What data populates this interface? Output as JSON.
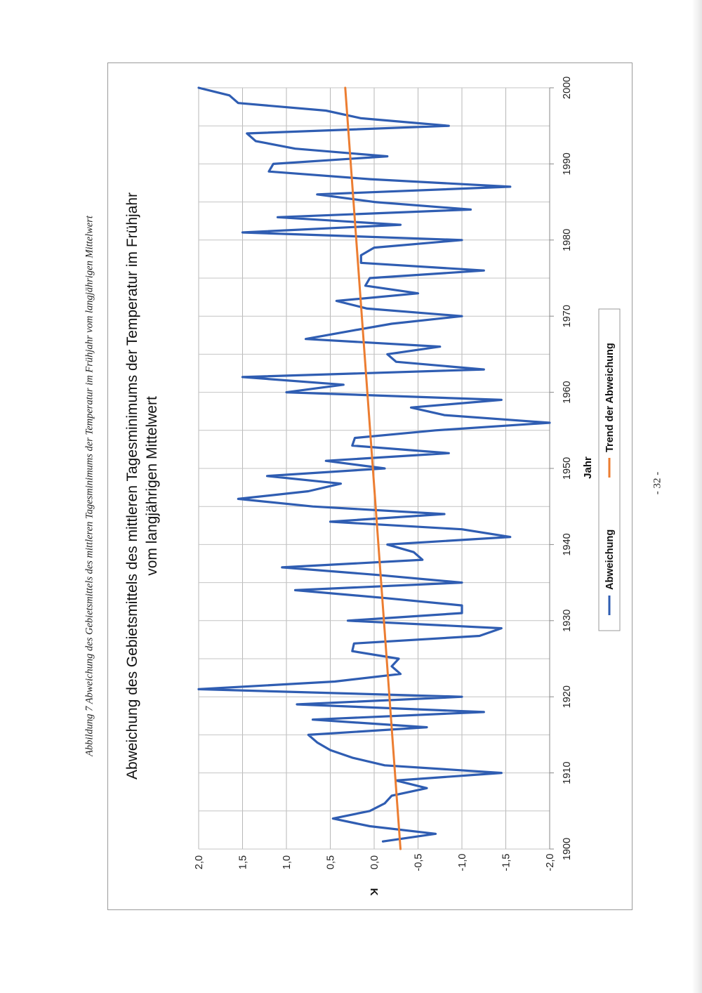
{
  "document": {
    "caption": "Abbildung 7 Abweichung des Gebietsmittels des mittleren Tagesminimums der Temperatur im Frühjahr vom langjährigen Mittelwert",
    "page_number": "- 32 -"
  },
  "chart_data": {
    "type": "line",
    "title": "Abweichung des Gebietsmittels des mittleren Tagesminimums der Temperatur im Frühjahr",
    "subtitle": "vom langjährigen Mittelwert",
    "xlabel": "Jahr",
    "ylabel": "K",
    "xlim": [
      1900,
      2000
    ],
    "ylim": [
      -2.0,
      2.0
    ],
    "x_ticks": [
      1900,
      1910,
      1920,
      1930,
      1940,
      1950,
      1960,
      1970,
      1980,
      1990,
      2000
    ],
    "y_ticks": [
      "2,0",
      "1,5",
      "1,0",
      "0,5",
      "0,0",
      "-0,5",
      "-1,0",
      "-1,5",
      "-2,0"
    ],
    "y_tick_values": [
      2.0,
      1.5,
      1.0,
      0.5,
      0.0,
      -0.5,
      -1.0,
      -1.5,
      -2.0
    ],
    "grid": true,
    "legend_position": "bottom",
    "series": [
      {
        "name": "Abweichung",
        "color": "#2f5db2",
        "x": [
          1901,
          1902,
          1903,
          1904,
          1905,
          1906,
          1907,
          1908,
          1909,
          1910,
          1911,
          1912,
          1913,
          1914,
          1915,
          1916,
          1917,
          1918,
          1919,
          1920,
          1921,
          1922,
          1923,
          1924,
          1925,
          1926,
          1927,
          1928,
          1929,
          1930,
          1931,
          1932,
          1933,
          1934,
          1935,
          1936,
          1937,
          1938,
          1939,
          1940,
          1941,
          1942,
          1943,
          1944,
          1945,
          1946,
          1947,
          1948,
          1949,
          1950,
          1951,
          1952,
          1953,
          1954,
          1955,
          1956,
          1957,
          1958,
          1959,
          1960,
          1961,
          1962,
          1963,
          1964,
          1965,
          1966,
          1967,
          1968,
          1969,
          1970,
          1971,
          1972,
          1973,
          1974,
          1975,
          1976,
          1977,
          1978,
          1979,
          1980,
          1981,
          1982,
          1983,
          1984,
          1985,
          1986,
          1987,
          1988,
          1989,
          1990,
          1991,
          1992,
          1993,
          1994,
          1995,
          1996,
          1997,
          1998,
          1999,
          2000
        ],
        "values": [
          -0.1,
          -0.7,
          0.05,
          0.47,
          0.05,
          -0.12,
          -0.2,
          -0.6,
          -0.25,
          -1.45,
          -0.12,
          0.25,
          0.5,
          0.65,
          0.75,
          -0.6,
          0.7,
          -1.25,
          0.88,
          -1.0,
          2.0,
          0.45,
          -0.3,
          -0.2,
          -0.28,
          0.25,
          0.23,
          -1.2,
          -1.45,
          0.3,
          -1.0,
          -1.0,
          -0.1,
          0.9,
          -1.0,
          -0.05,
          1.05,
          -0.55,
          -0.45,
          -0.15,
          -1.55,
          -1.0,
          0.5,
          -0.8,
          0.7,
          1.55,
          0.75,
          0.38,
          1.22,
          -0.12,
          0.55,
          -0.85,
          0.25,
          0.22,
          -0.7,
          -2.0,
          -0.8,
          -0.42,
          -1.45,
          1.0,
          0.35,
          1.5,
          -1.25,
          -0.25,
          -0.15,
          -0.75,
          0.78,
          0.3,
          -0.2,
          -1.0,
          0.08,
          0.43,
          -0.5,
          0.1,
          0.05,
          -1.25,
          0.15,
          0.15,
          0.0,
          -1.0,
          1.5,
          -0.3,
          1.1,
          -1.1,
          0.0,
          0.65,
          -1.55,
          0.05,
          1.2,
          1.15,
          -0.15,
          0.9,
          1.35,
          1.45,
          -0.85,
          0.15,
          0.55,
          1.55,
          1.65,
          2.0
        ]
      },
      {
        "name": "Trend der Abweichung",
        "color": "#ec7d31",
        "x": [
          1900,
          2000
        ],
        "values": [
          -0.3,
          0.33
        ]
      }
    ]
  }
}
